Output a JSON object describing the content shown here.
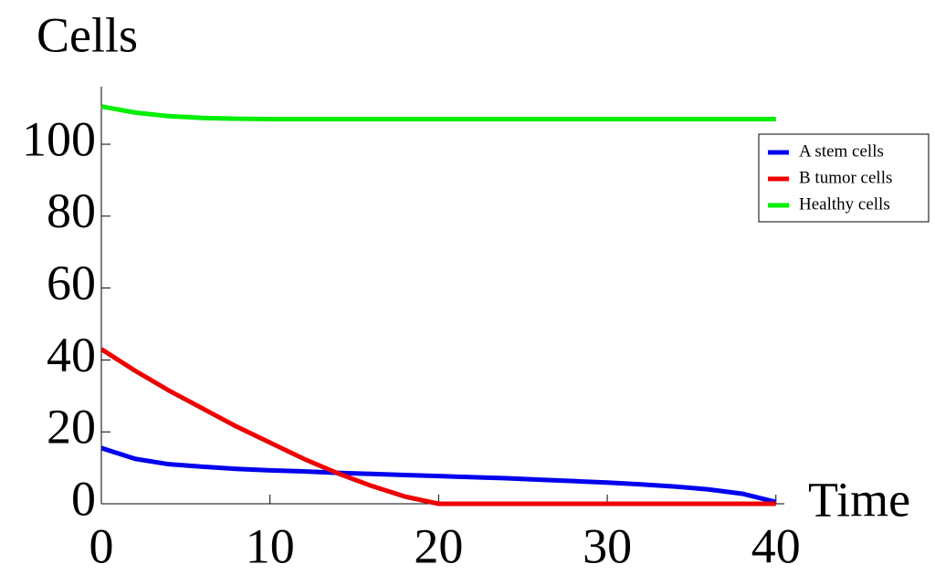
{
  "chart_data": {
    "type": "line",
    "y_label": "Cells",
    "x_label": "Time",
    "x": [
      0,
      2,
      4,
      6,
      8,
      10,
      12,
      14,
      16,
      18,
      20,
      22,
      24,
      26,
      28,
      30,
      32,
      34,
      36,
      38,
      40
    ],
    "series": [
      {
        "name": "A stem cells",
        "color": "#0000ee",
        "values": [
          15.5,
          12.5,
          11,
          10.3,
          9.7,
          9.3,
          9,
          8.6,
          8.3,
          8,
          7.7,
          7.4,
          7.1,
          6.7,
          6.3,
          5.9,
          5.4,
          4.8,
          4,
          2.8,
          0.5
        ]
      },
      {
        "name": "B tumor cells",
        "color": "#ee0000",
        "values": [
          43,
          37,
          31.5,
          26.5,
          21.5,
          17,
          12.5,
          8.5,
          5,
          2,
          0,
          0,
          0,
          0,
          0,
          0,
          0,
          0,
          0,
          0,
          0
        ]
      },
      {
        "name": "Healthy cells",
        "color": "#00ee00",
        "values": [
          110.5,
          108.8,
          107.8,
          107.3,
          107.1,
          107,
          107,
          107,
          107,
          107,
          107,
          107,
          107,
          107,
          107,
          107,
          107,
          107,
          107,
          107,
          107
        ]
      }
    ],
    "xlim": [
      0,
      40.5
    ],
    "ylim": [
      0,
      116
    ],
    "xticks": [
      0,
      10,
      20,
      30,
      40
    ],
    "yticks": [
      0,
      20,
      40,
      60,
      80,
      100
    ],
    "legend": "right"
  }
}
